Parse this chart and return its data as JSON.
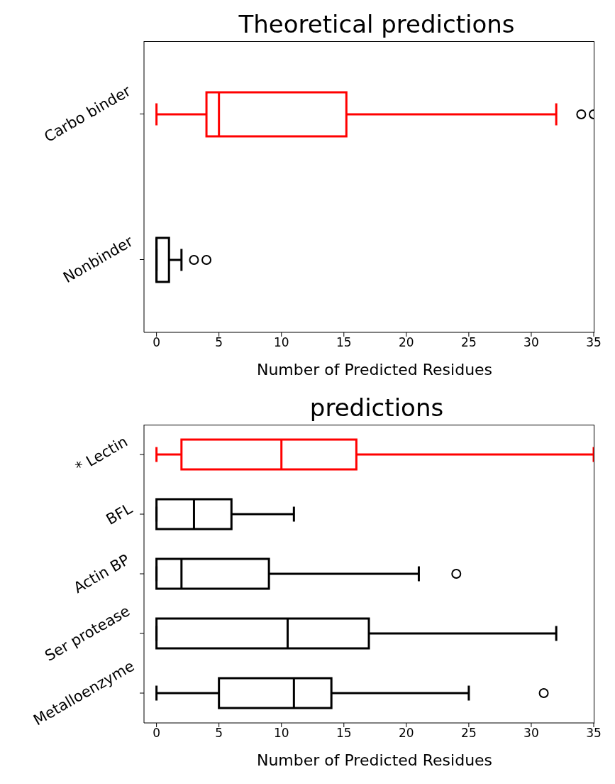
{
  "chart_data": [
    {
      "type": "box",
      "title": "Theoretical predictions",
      "xlabel": "Number of Predicted Residues",
      "orientation": "horizontal",
      "categories": [
        "Carbo binder",
        "Nonbinder"
      ],
      "colors": [
        "#ff0000",
        "#000000"
      ],
      "boxes": [
        {
          "low": 0,
          "q1": 4,
          "median": 5,
          "q3": 15.2,
          "high": 32,
          "outliers": [
            34,
            35
          ]
        },
        {
          "low": 0,
          "q1": 0,
          "median": 0,
          "q3": 1,
          "high": 2,
          "outliers": [
            3,
            4
          ]
        }
      ],
      "xlim": [
        -1,
        35
      ],
      "xticks": [
        0,
        5,
        10,
        15,
        20,
        25,
        30,
        35
      ]
    },
    {
      "type": "box",
      "title": "predictions",
      "xlabel": "Number of Predicted Residues",
      "orientation": "horizontal",
      "categories": [
        "* Lectin",
        "BFL",
        "Actin BP",
        "Ser protease",
        "Metalloenzyme"
      ],
      "colors": [
        "#ff0000",
        "#000000",
        "#000000",
        "#000000",
        "#000000"
      ],
      "boxes": [
        {
          "low": 0,
          "q1": 2,
          "median": 10,
          "q3": 16,
          "high": 35
        },
        {
          "low": 0,
          "q1": 0,
          "median": 3,
          "q3": 6,
          "high": 11
        },
        {
          "low": 0,
          "q1": 0,
          "median": 2,
          "q3": 9,
          "high": 21,
          "outliers": [
            24
          ]
        },
        {
          "low": 0,
          "q1": 0,
          "median": 10.5,
          "q3": 17,
          "high": 32
        },
        {
          "low": 0,
          "q1": 5,
          "median": 11,
          "q3": 14,
          "high": 25,
          "outliers": [
            31
          ]
        }
      ],
      "xlim": [
        -1,
        35
      ],
      "xticks": [
        0,
        5,
        10,
        15,
        20,
        25,
        30,
        35
      ]
    }
  ]
}
